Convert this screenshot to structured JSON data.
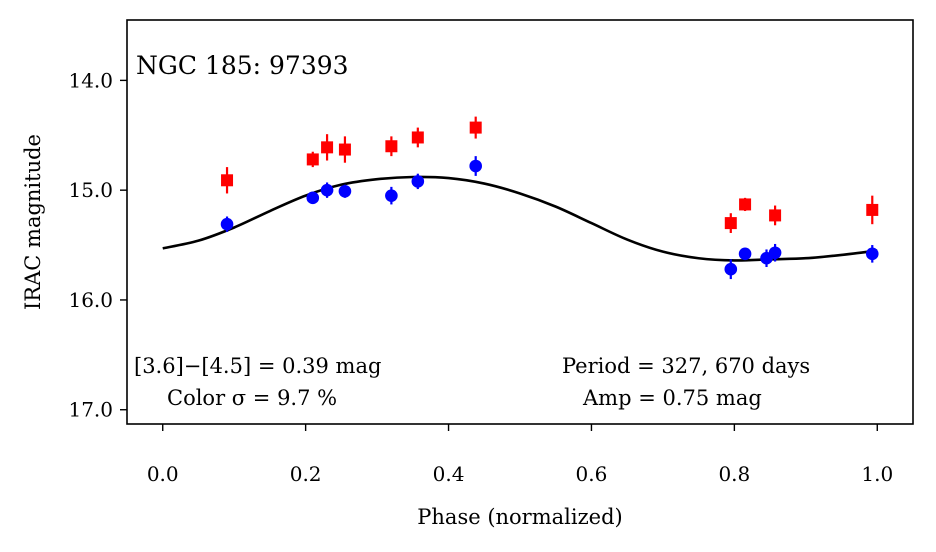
{
  "chart_data": {
    "type": "scatter",
    "title": "NGC 185:  97393",
    "xlabel": "Phase (normalized)",
    "ylabel": "IRAC magnitude",
    "xlim": [
      -0.05,
      1.05
    ],
    "ylim": [
      17.13,
      13.45
    ],
    "y_inverted": true,
    "grid": false,
    "x_ticks": [
      0.0,
      0.2,
      0.4,
      0.6,
      0.8,
      1.0
    ],
    "x_tick_labels": [
      "0.0",
      "0.2",
      "0.4",
      "0.6",
      "0.8",
      "1.0"
    ],
    "y_ticks": [
      14.0,
      15.0,
      16.0,
      17.0
    ],
    "y_tick_labels": [
      "14.0",
      "15.0",
      "16.0",
      "17.0"
    ],
    "series": [
      {
        "color": "#0000ff",
        "marker": "circle",
        "x": [
          0.09,
          0.21,
          0.23,
          0.255,
          0.32,
          0.357,
          0.438,
          0.795,
          0.815,
          0.845,
          0.857,
          0.993
        ],
        "y": [
          15.31,
          15.07,
          15.0,
          15.01,
          15.05,
          14.92,
          14.78,
          15.72,
          15.58,
          15.62,
          15.57,
          15.58
        ],
        "yerr": [
          0.07,
          0.04,
          0.07,
          0.06,
          0.08,
          0.07,
          0.09,
          0.09,
          0.05,
          0.08,
          0.08,
          0.08
        ]
      },
      {
        "color": "#ff0000",
        "marker": "square",
        "x": [
          0.09,
          0.21,
          0.23,
          0.255,
          0.32,
          0.357,
          0.438,
          0.795,
          0.815,
          0.857,
          0.993
        ],
        "y": [
          14.91,
          14.72,
          14.61,
          14.63,
          14.6,
          14.52,
          14.43,
          15.3,
          15.13,
          15.23,
          15.18
        ],
        "yerr": [
          0.12,
          0.07,
          0.12,
          0.12,
          0.09,
          0.09,
          0.1,
          0.09,
          0.06,
          0.09,
          0.13
        ]
      }
    ],
    "model_curve": {
      "color": "#000000",
      "x": [
        0.0,
        0.05,
        0.1,
        0.15,
        0.2,
        0.25,
        0.3,
        0.35,
        0.4,
        0.45,
        0.5,
        0.55,
        0.6,
        0.65,
        0.7,
        0.75,
        0.8,
        0.85,
        0.9,
        0.95,
        1.0
      ],
      "y": [
        15.53,
        15.46,
        15.34,
        15.19,
        15.05,
        14.95,
        14.9,
        14.88,
        14.89,
        14.94,
        15.03,
        15.15,
        15.3,
        15.45,
        15.56,
        15.62,
        15.64,
        15.63,
        15.62,
        15.59,
        15.55
      ]
    },
    "annotations": {
      "color_diff": "[3.6]−[4.5] = 0.39 mag",
      "color_sigma": "Color σ = 9.7 %",
      "period": "Period = 327, 670 days",
      "amp": "Amp = 0.75 mag"
    }
  }
}
